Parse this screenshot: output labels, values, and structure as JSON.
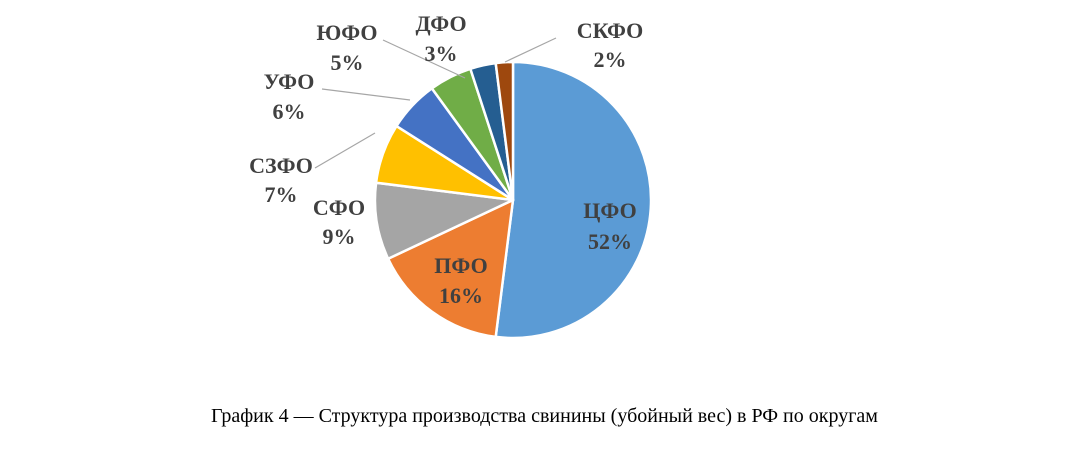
{
  "caption": "График 4 — Структура производства свинины (убойный вес) в РФ по округам",
  "chart_data": {
    "type": "pie",
    "title": "",
    "start_angle_deg": 0,
    "direction": "clockwise",
    "slices": [
      {
        "label": "ЦФО",
        "value": 52,
        "display": "52%",
        "color": "#5b9bd5",
        "label_inside": true
      },
      {
        "label": "ПФО",
        "value": 16,
        "display": "16%",
        "color": "#ed7d31",
        "label_inside": true
      },
      {
        "label": "СФО",
        "value": 9,
        "display": "9%",
        "color": "#a5a5a5",
        "label_inside": false
      },
      {
        "label": "СЗФО",
        "value": 7,
        "display": "7%",
        "color": "#ffc000",
        "label_inside": false
      },
      {
        "label": "УФО",
        "value": 6,
        "display": "6%",
        "color": "#4472c4",
        "label_inside": false
      },
      {
        "label": "ЮФО",
        "value": 5,
        "display": "5%",
        "color": "#70ad47",
        "label_inside": false
      },
      {
        "label": "ДФО",
        "value": 3,
        "display": "3%",
        "color": "#255e91",
        "label_inside": false
      },
      {
        "label": "СКФО",
        "value": 2,
        "display": "2%",
        "color": "#9e480e",
        "label_inside": false
      }
    ]
  }
}
